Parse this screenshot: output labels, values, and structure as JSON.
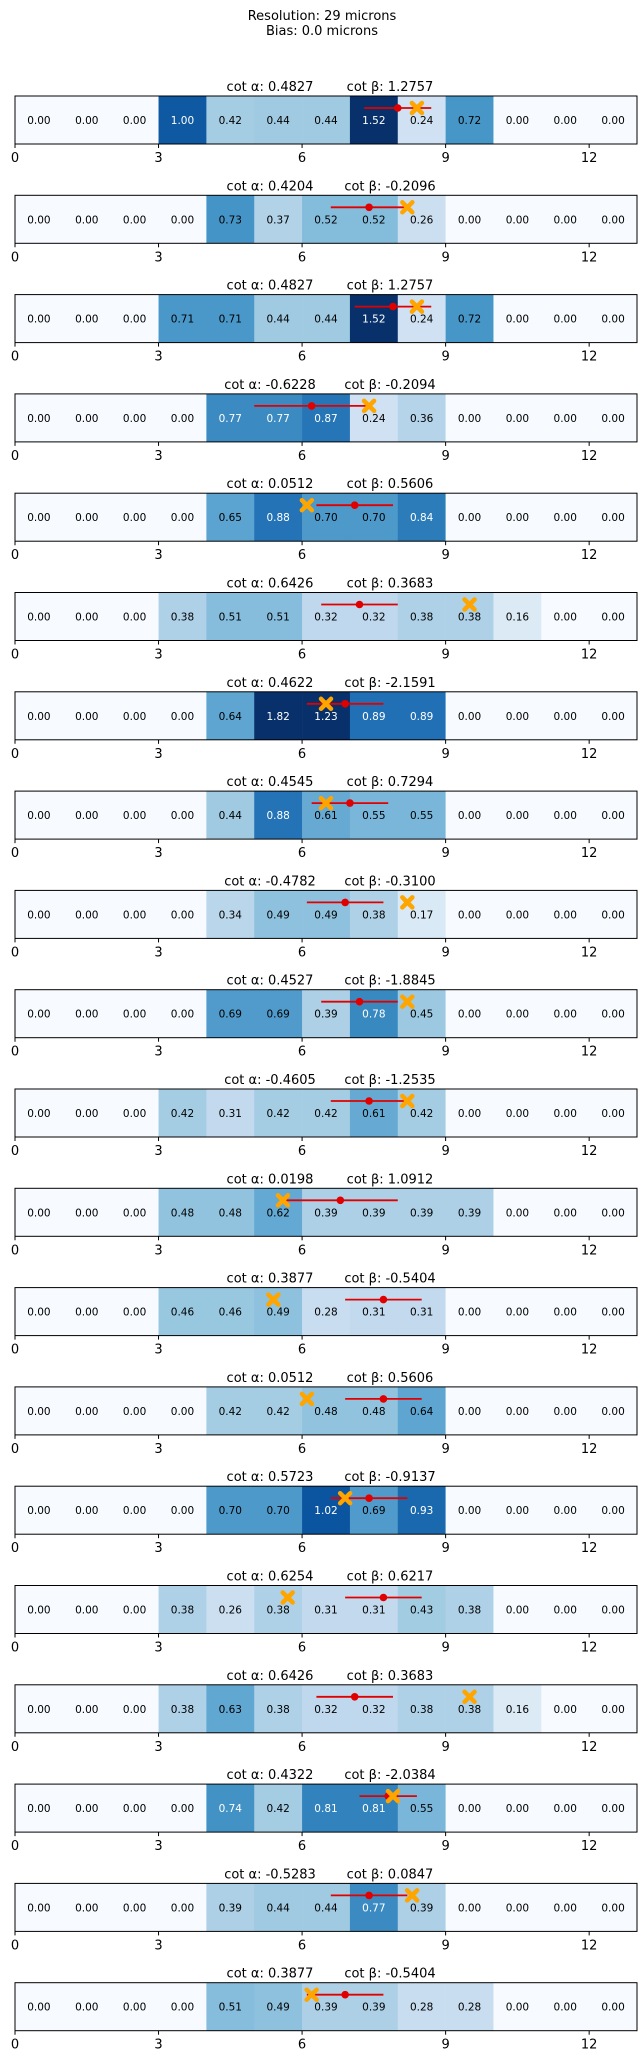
{
  "header": {
    "line1": "Resolution: 29 microns",
    "line2": "Bias: 0.0 microns"
  },
  "colors": {
    "cmap": "Blues",
    "marker_true": "#ffa500",
    "marker_pred": "#e00000",
    "frame": "#000000"
  },
  "chart_data": [
    {
      "type": "heatmap",
      "cot_alpha": "0.4827",
      "cot_beta": "1.2757",
      "values": [
        0,
        0,
        0,
        1.0,
        0.42,
        0.44,
        0.44,
        1.52,
        0.24,
        0.72,
        0,
        0,
        0
      ],
      "true_x": 8.4,
      "pred_x": 8.0,
      "pred_err": 0.7
    },
    {
      "type": "heatmap",
      "cot_alpha": "0.4204",
      "cot_beta": "-0.2096",
      "values": [
        0,
        0,
        0,
        0,
        0.73,
        0.37,
        0.52,
        0.52,
        0.26,
        0,
        0,
        0,
        0
      ],
      "true_x": 8.2,
      "pred_x": 7.4,
      "pred_err": 0.8
    },
    {
      "type": "heatmap",
      "cot_alpha": "0.4827",
      "cot_beta": "1.2757",
      "values": [
        0,
        0,
        0,
        0.71,
        0.71,
        0.44,
        0.44,
        1.52,
        0.24,
        0.72,
        0,
        0,
        0
      ],
      "true_x": 8.4,
      "pred_x": 7.9,
      "pred_err": 0.8
    },
    {
      "type": "heatmap",
      "cot_alpha": "-0.6228",
      "cot_beta": "-0.2094",
      "values": [
        0,
        0,
        0,
        0,
        0.77,
        0.77,
        0.87,
        0.24,
        0.36,
        0,
        0,
        0,
        0
      ],
      "true_x": 7.4,
      "pred_x": 6.2,
      "pred_err": 1.2
    },
    {
      "type": "heatmap",
      "cot_alpha": "0.0512",
      "cot_beta": "0.5606",
      "values": [
        0,
        0,
        0,
        0,
        0.65,
        0.88,
        0.7,
        0.7,
        0.84,
        0,
        0,
        0,
        0
      ],
      "true_x": 6.1,
      "pred_x": 7.1,
      "pred_err": 0.8
    },
    {
      "type": "heatmap",
      "cot_alpha": "0.6426",
      "cot_beta": "0.3683",
      "values": [
        0,
        0,
        0,
        0.38,
        0.51,
        0.51,
        0.32,
        0.32,
        0.38,
        0.38,
        0.16,
        0,
        0
      ],
      "true_x": 9.5,
      "pred_x": 7.2,
      "pred_err": 0.8
    },
    {
      "type": "heatmap",
      "cot_alpha": "0.4622",
      "cot_beta": "-2.1591",
      "values": [
        0,
        0,
        0,
        0,
        0.64,
        1.82,
        1.23,
        0.89,
        0.89,
        0,
        0,
        0,
        0
      ],
      "true_x": 6.5,
      "pred_x": 6.9,
      "pred_err": 0.8
    },
    {
      "type": "heatmap",
      "cot_alpha": "0.4545",
      "cot_beta": "0.7294",
      "values": [
        0,
        0,
        0,
        0,
        0.44,
        0.88,
        0.61,
        0.55,
        0.55,
        0,
        0,
        0,
        0
      ],
      "true_x": 6.5,
      "pred_x": 7.0,
      "pred_err": 0.8
    },
    {
      "type": "heatmap",
      "cot_alpha": "-0.4782",
      "cot_beta": "-0.3100",
      "values": [
        0,
        0,
        0,
        0,
        0.34,
        0.49,
        0.49,
        0.38,
        0.17,
        0,
        0,
        0,
        0
      ],
      "true_x": 8.2,
      "pred_x": 6.9,
      "pred_err": 0.8
    },
    {
      "type": "heatmap",
      "cot_alpha": "0.4527",
      "cot_beta": "-1.8845",
      "values": [
        0,
        0,
        0,
        0,
        0.69,
        0.69,
        0.39,
        0.78,
        0.45,
        0,
        0,
        0,
        0
      ],
      "true_x": 8.2,
      "pred_x": 7.2,
      "pred_err": 0.8
    },
    {
      "type": "heatmap",
      "cot_alpha": "-0.4605",
      "cot_beta": "-1.2535",
      "values": [
        0,
        0,
        0,
        0.42,
        0.31,
        0.42,
        0.42,
        0.61,
        0.42,
        0,
        0,
        0,
        0
      ],
      "true_x": 8.2,
      "pred_x": 7.4,
      "pred_err": 0.8
    },
    {
      "type": "heatmap",
      "cot_alpha": "0.0198",
      "cot_beta": "1.0912",
      "values": [
        0,
        0,
        0,
        0.48,
        0.48,
        0.62,
        0.39,
        0.39,
        0.39,
        0.39,
        0,
        0,
        0
      ],
      "true_x": 5.6,
      "pred_x": 6.8,
      "pred_err": 1.2
    },
    {
      "type": "heatmap",
      "cot_alpha": "0.3877",
      "cot_beta": "-0.5404",
      "values": [
        0,
        0,
        0,
        0.46,
        0.46,
        0.49,
        0.28,
        0.31,
        0.31,
        0,
        0,
        0,
        0
      ],
      "true_x": 5.4,
      "pred_x": 7.7,
      "pred_err": 0.8
    },
    {
      "type": "heatmap",
      "cot_alpha": "0.0512",
      "cot_beta": "0.5606",
      "values": [
        0,
        0,
        0,
        0,
        0.42,
        0.42,
        0.48,
        0.48,
        0.64,
        0,
        0,
        0,
        0
      ],
      "true_x": 6.1,
      "pred_x": 7.7,
      "pred_err": 0.8
    },
    {
      "type": "heatmap",
      "cot_alpha": "0.5723",
      "cot_beta": "-0.9137",
      "values": [
        0,
        0,
        0,
        0,
        0.7,
        0.7,
        1.02,
        0.69,
        0.93,
        0,
        0,
        0,
        0
      ],
      "true_x": 6.9,
      "pred_x": 7.4,
      "pred_err": 0.8
    },
    {
      "type": "heatmap",
      "cot_alpha": "0.6254",
      "cot_beta": "0.6217",
      "values": [
        0,
        0,
        0,
        0.38,
        0.26,
        0.38,
        0.31,
        0.31,
        0.43,
        0.38,
        0,
        0,
        0
      ],
      "true_x": 5.7,
      "pred_x": 7.7,
      "pred_err": 0.8
    },
    {
      "type": "heatmap",
      "cot_alpha": "0.6426",
      "cot_beta": "0.3683",
      "values": [
        0,
        0,
        0,
        0.38,
        0.63,
        0.38,
        0.32,
        0.32,
        0.38,
        0.38,
        0.16,
        0,
        0
      ],
      "true_x": 9.5,
      "pred_x": 7.1,
      "pred_err": 0.8
    },
    {
      "type": "heatmap",
      "cot_alpha": "0.4322",
      "cot_beta": "-2.0384",
      "values": [
        0,
        0,
        0,
        0,
        0.74,
        0.42,
        0.81,
        0.81,
        0.55,
        0,
        0,
        0,
        0
      ],
      "true_x": 7.9,
      "pred_x": 7.8,
      "pred_err": 0.6
    },
    {
      "type": "heatmap",
      "cot_alpha": "-0.5283",
      "cot_beta": "0.0847",
      "values": [
        0,
        0,
        0,
        0,
        0.39,
        0.44,
        0.44,
        0.77,
        0.39,
        0,
        0,
        0,
        0
      ],
      "true_x": 8.3,
      "pred_x": 7.4,
      "pred_err": 0.8
    },
    {
      "type": "heatmap",
      "cot_alpha": "0.3877",
      "cot_beta": "-0.5404",
      "values": [
        0,
        0,
        0,
        0,
        0.51,
        0.49,
        0.39,
        0.39,
        0.28,
        0.28,
        0,
        0,
        0
      ],
      "true_x": 6.2,
      "pred_x": 6.9,
      "pred_err": 0.8
    }
  ],
  "axis": {
    "xlim": [
      0,
      13
    ],
    "ticks": [
      0,
      3,
      6,
      9,
      12
    ],
    "tick_labels": [
      "0",
      "3",
      "6",
      "9",
      "12"
    ],
    "vmax": 1.82
  },
  "labels": {
    "alpha_prefix": "cot α: ",
    "beta_prefix": "cot β: "
  }
}
